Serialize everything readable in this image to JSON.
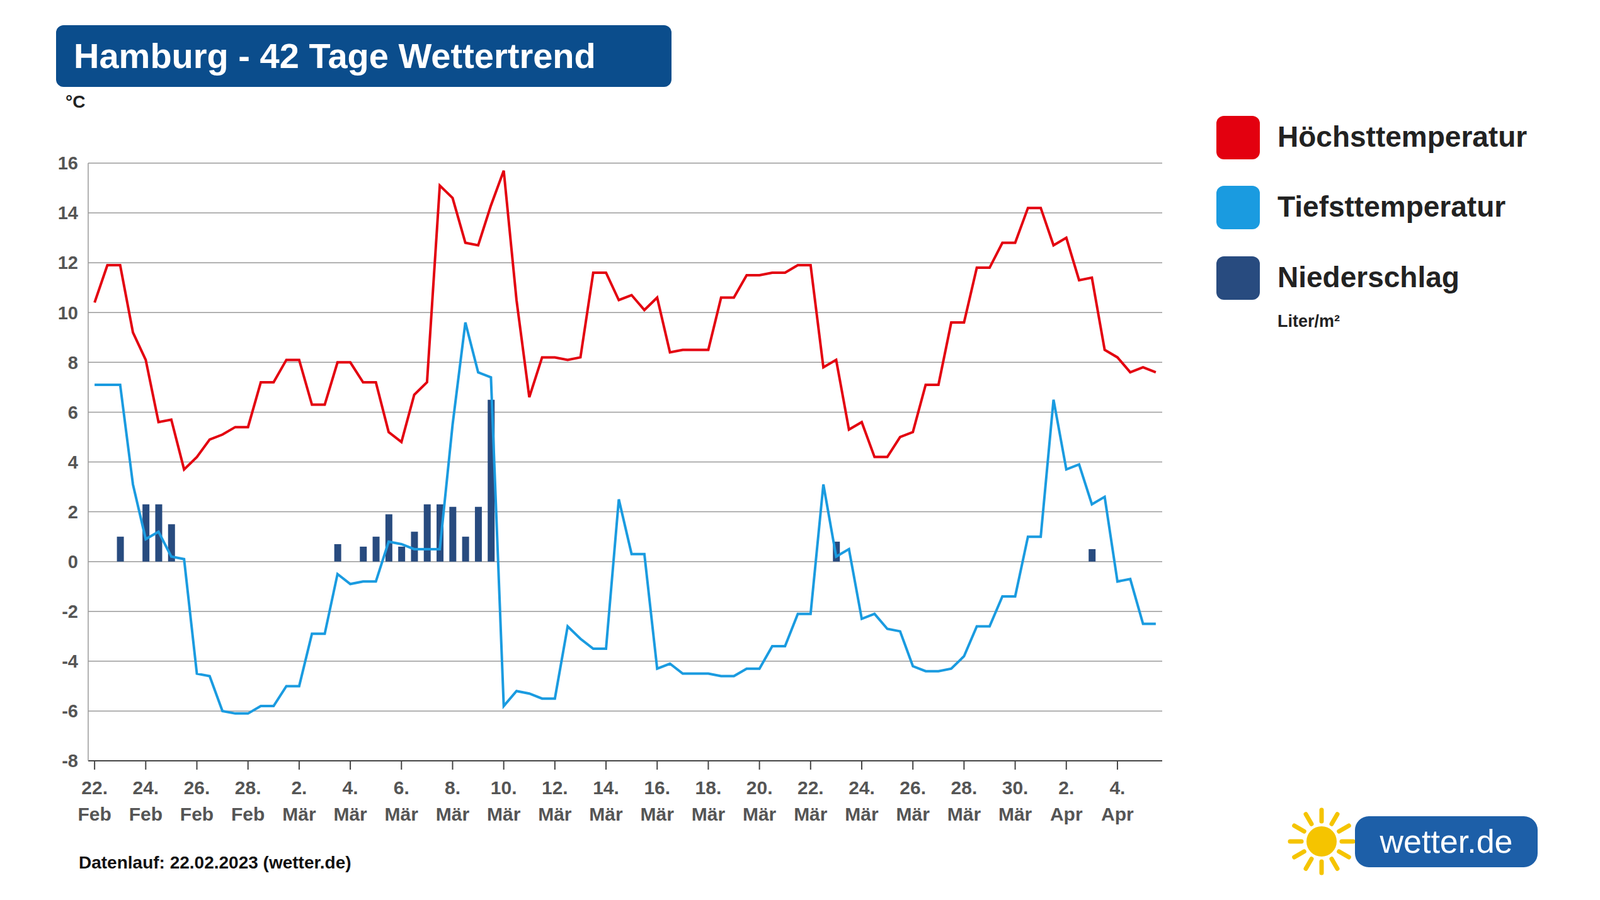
{
  "chart_data": {
    "type": "line",
    "title": "Hamburg - 42 Tage Wettertrend",
    "footer": "Datenlauf: 22.02.2023 (wetter.de)",
    "logo": "wetter.de",
    "y_label": "°C",
    "categories": [
      "22. Feb",
      null,
      null,
      null,
      "24. Feb",
      null,
      null,
      null,
      "26. Feb",
      null,
      null,
      null,
      "28. Feb",
      null,
      null,
      null,
      "2. Mär",
      null,
      null,
      null,
      "4. Mär",
      null,
      null,
      null,
      "6. Mär",
      null,
      null,
      null,
      "8. Mär",
      null,
      null,
      null,
      "10. Mär",
      null,
      null,
      null,
      "12. Mär",
      null,
      null,
      null,
      "14. Mär",
      null,
      null,
      null,
      "16. Mär",
      null,
      null,
      null,
      "18. Mär",
      null,
      null,
      null,
      "20. Mär",
      null,
      null,
      null,
      "22. Mär",
      null,
      null,
      null,
      "24. Mär",
      null,
      null,
      null,
      "26. Mär",
      null,
      null,
      null,
      "28. Mär",
      null,
      null,
      null,
      "30. Mär",
      null,
      null,
      null,
      "2. Apr",
      null,
      null,
      null,
      "4. Apr",
      null,
      null,
      null
    ],
    "series": [
      {
        "name": "Höchsttemperatur",
        "color": "#e3000f",
        "type": "line",
        "values": [
          10.4,
          11.9,
          11.9,
          9.2,
          8.1,
          5.6,
          5.7,
          3.7,
          4.2,
          4.9,
          5.1,
          5.4,
          5.4,
          7.2,
          7.2,
          8.1,
          8.1,
          6.3,
          6.3,
          8.0,
          8.0,
          7.2,
          7.2,
          5.2,
          4.8,
          6.7,
          7.2,
          15.1,
          14.6,
          12.8,
          12.7,
          14.3,
          15.7,
          10.5,
          6.6,
          8.2,
          8.2,
          8.1,
          8.2,
          11.6,
          11.6,
          10.5,
          10.7,
          10.1,
          10.6,
          8.4,
          8.5,
          8.5,
          8.5,
          10.6,
          10.6,
          11.5,
          11.5,
          11.6,
          11.6,
          11.9,
          11.9,
          7.8,
          8.1,
          5.3,
          5.6,
          4.2,
          4.2,
          5.0,
          5.2,
          7.1,
          7.1,
          9.6,
          9.6,
          11.8,
          11.8,
          12.8,
          12.8,
          14.2,
          14.2,
          12.7,
          13.0,
          11.3,
          11.4,
          8.5,
          8.2,
          7.6,
          7.8,
          7.6
        ]
      },
      {
        "name": "Tiefsttemperatur",
        "color": "#1a9be0",
        "type": "line",
        "values": [
          7.1,
          7.1,
          7.1,
          3.1,
          0.9,
          1.2,
          0.2,
          0.1,
          -4.5,
          -4.6,
          -6.0,
          -6.1,
          -6.1,
          -5.8,
          -5.8,
          -5.0,
          -5.0,
          -2.9,
          -2.9,
          -0.5,
          -0.9,
          -0.8,
          -0.8,
          0.8,
          0.7,
          0.5,
          0.5,
          0.5,
          5.5,
          9.6,
          7.6,
          7.4,
          -5.8,
          -5.2,
          -5.3,
          -5.5,
          -5.5,
          -2.6,
          -3.1,
          -3.5,
          -3.5,
          2.5,
          0.3,
          0.3,
          -4.3,
          -4.1,
          -4.5,
          -4.5,
          -4.5,
          -4.6,
          -4.6,
          -4.3,
          -4.3,
          -3.4,
          -3.4,
          -2.1,
          -2.1,
          3.1,
          0.2,
          0.5,
          -2.3,
          -2.1,
          -2.7,
          -2.8,
          -4.2,
          -4.4,
          -4.4,
          -4.3,
          -3.8,
          -2.6,
          -2.6,
          -1.4,
          -1.4,
          1.0,
          1.0,
          6.5,
          3.7,
          3.9,
          2.3,
          2.6,
          -0.8,
          -0.7,
          -2.5,
          -2.5
        ]
      },
      {
        "name": "Niederschlag",
        "unit": "Liter/m²",
        "color": "#284b7f",
        "type": "bar",
        "values": [
          null,
          null,
          1.0,
          null,
          2.3,
          2.3,
          1.5,
          null,
          null,
          null,
          null,
          null,
          null,
          null,
          null,
          null,
          null,
          null,
          null,
          0.7,
          null,
          0.6,
          1.0,
          1.9,
          0.6,
          1.2,
          2.3,
          2.3,
          2.2,
          1.0,
          2.2,
          6.5,
          null,
          null,
          null,
          null,
          null,
          null,
          null,
          null,
          null,
          null,
          null,
          null,
          null,
          null,
          null,
          null,
          null,
          null,
          null,
          null,
          null,
          null,
          null,
          null,
          null,
          null,
          0.8,
          null,
          null,
          null,
          null,
          null,
          null,
          null,
          null,
          null,
          null,
          null,
          null,
          null,
          null,
          null,
          null,
          null,
          null,
          null,
          0.5,
          null,
          null,
          null,
          null,
          null
        ]
      }
    ],
    "ylim": [
      -8,
      16
    ],
    "yticks": [
      -8,
      -6,
      -4,
      -2,
      0,
      2,
      4,
      6,
      8,
      10,
      12,
      14,
      16
    ],
    "grid": true,
    "legend": "right"
  }
}
